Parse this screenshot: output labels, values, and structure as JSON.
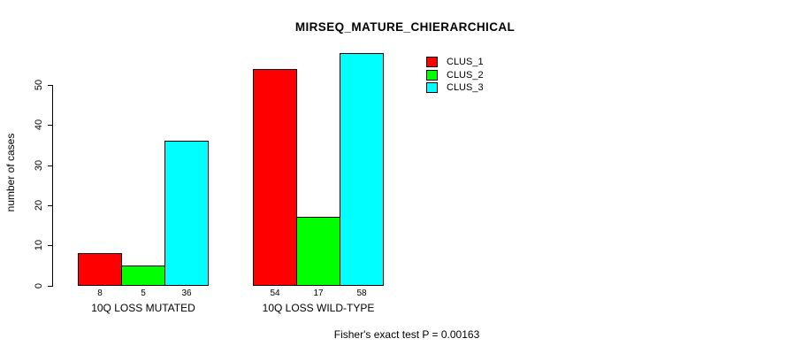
{
  "title": "MIRSEQ_MATURE_CHIERARCHICAL",
  "footer": "Fisher's exact test P = 0.00163",
  "colors": {
    "clus_1": "#ff0000",
    "clus_2": "#00ff00",
    "clus_3": "#00ffff",
    "axis": "#000000",
    "background": "#ffffff"
  },
  "chart_data": {
    "type": "bar",
    "title": "MIRSEQ_MATURE_CHIERARCHICAL",
    "xlabel": "",
    "ylabel": "number of cases",
    "categories": [
      "10Q LOSS MUTATED",
      "10Q LOSS WILD-TYPE"
    ],
    "series": [
      {
        "name": "CLUS_1",
        "color": "#ff0000",
        "values": [
          8,
          54
        ]
      },
      {
        "name": "CLUS_2",
        "color": "#00ff00",
        "values": [
          5,
          17
        ]
      },
      {
        "name": "CLUS_3",
        "color": "#00ffff",
        "values": [
          36,
          58
        ]
      }
    ],
    "bar_value_labels": [
      [
        8,
        5,
        36
      ],
      [
        54,
        17,
        58
      ]
    ],
    "yticks": [
      0,
      10,
      20,
      30,
      40,
      50
    ],
    "ylim": [
      0,
      58
    ],
    "grid": false,
    "legend_position": "top-right",
    "legend_entries": [
      "CLUS_1",
      "CLUS_2",
      "CLUS_3"
    ],
    "annotation": "Fisher's exact test P = 0.00163"
  }
}
